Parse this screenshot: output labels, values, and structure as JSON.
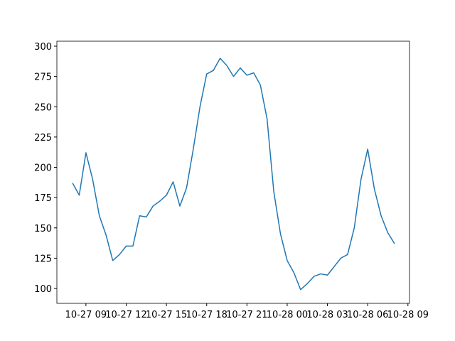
{
  "chart_data": {
    "type": "line",
    "x": [
      "10-27 08:00",
      "10-27 08:30",
      "10-27 09:00",
      "10-27 09:30",
      "10-27 10:00",
      "10-27 10:30",
      "10-27 11:00",
      "10-27 11:30",
      "10-27 12:00",
      "10-27 12:30",
      "10-27 13:00",
      "10-27 13:30",
      "10-27 14:00",
      "10-27 14:30",
      "10-27 15:00",
      "10-27 15:30",
      "10-27 16:00",
      "10-27 16:30",
      "10-27 17:00",
      "10-27 17:30",
      "10-27 18:00",
      "10-27 18:30",
      "10-27 19:00",
      "10-27 19:30",
      "10-27 20:00",
      "10-27 20:30",
      "10-27 21:00",
      "10-27 21:30",
      "10-27 22:00",
      "10-27 22:30",
      "10-27 23:00",
      "10-27 23:30",
      "10-28 00:00",
      "10-28 00:30",
      "10-28 01:00",
      "10-28 01:30",
      "10-28 02:00",
      "10-28 02:30",
      "10-28 03:00",
      "10-28 03:30",
      "10-28 04:00",
      "10-28 04:30",
      "10-28 05:00",
      "10-28 05:30",
      "10-28 06:00",
      "10-28 06:30",
      "10-28 07:00",
      "10-28 07:30",
      "10-28 08:00"
    ],
    "series": [
      {
        "color": "#1f77b4",
        "values": [
          187,
          177,
          212,
          190,
          160,
          144,
          123,
          128,
          135,
          135,
          160,
          159,
          168,
          172,
          177,
          188,
          168,
          183,
          215,
          250,
          277,
          280,
          290,
          284,
          275,
          282,
          276,
          278,
          268,
          240,
          180,
          145,
          123,
          113,
          99,
          104,
          110,
          112,
          111,
          118,
          125,
          128,
          150,
          190,
          215,
          182,
          160,
          146,
          137
        ]
      }
    ],
    "xlim": [
      "10-27 06:50",
      "10-28 09:07"
    ],
    "xticks": [
      {
        "value": "10-27 09:00",
        "label": "10-27 09"
      },
      {
        "value": "10-27 12:00",
        "label": "10-27 12"
      },
      {
        "value": "10-27 15:00",
        "label": "10-27 15"
      },
      {
        "value": "10-27 18:00",
        "label": "10-27 18"
      },
      {
        "value": "10-27 21:00",
        "label": "10-27 21"
      },
      {
        "value": "10-28 00:00",
        "label": "10-28 00"
      },
      {
        "value": "10-28 03:00",
        "label": "10-28 03"
      },
      {
        "value": "10-28 06:00",
        "label": "10-28 06"
      },
      {
        "value": "10-28 09:00",
        "label": "10-28 09"
      }
    ],
    "ylim": [
      87.7,
      304.1
    ],
    "yticks": [
      100,
      125,
      150,
      175,
      200,
      225,
      250,
      275,
      300
    ]
  }
}
